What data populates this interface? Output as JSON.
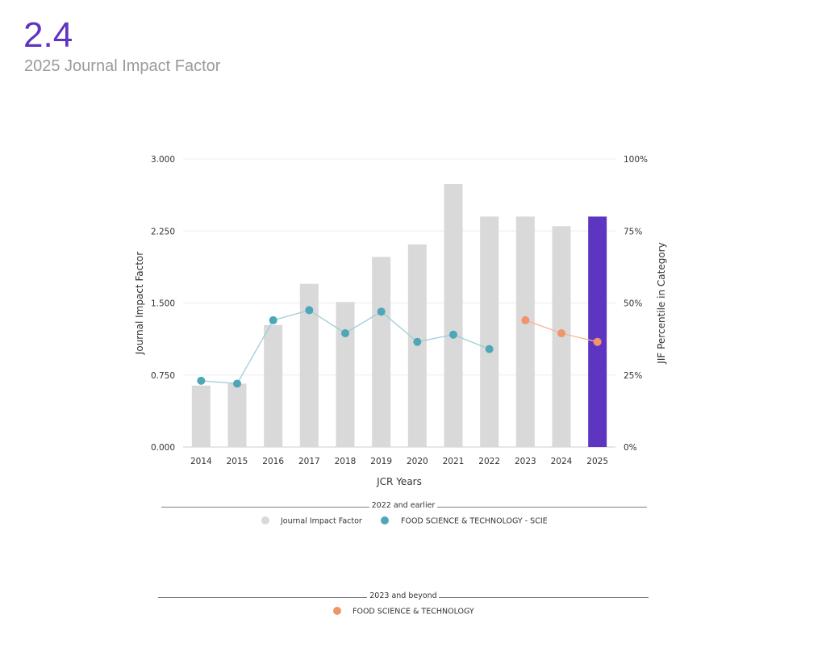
{
  "header": {
    "value": "2.4",
    "subtitle": "2025 Journal Impact Factor"
  },
  "chart_data": {
    "type": "bar",
    "categories": [
      "2014",
      "2015",
      "2016",
      "2017",
      "2018",
      "2019",
      "2020",
      "2021",
      "2022",
      "2023",
      "2024",
      "2025"
    ],
    "xlabel": "JCR Years",
    "ylabel": "Journal Impact Factor",
    "y2label": "JIF Percentile in Category",
    "ylim": [
      0,
      3
    ],
    "y2lim": [
      0,
      100
    ],
    "y_ticks": [
      "0.000",
      "0.750",
      "1.500",
      "2.250",
      "3.000"
    ],
    "y2_ticks": [
      "0%",
      "25%",
      "50%",
      "75%",
      "100%"
    ],
    "grid": true,
    "series": [
      {
        "name": "Journal Impact Factor",
        "type": "bar",
        "values": [
          0.64,
          0.66,
          1.27,
          1.7,
          1.51,
          1.98,
          2.11,
          2.74,
          2.4,
          2.4,
          2.3,
          2.4
        ],
        "color": "#d9d9d9",
        "highlight_index": 11,
        "highlight_color": "#5e35c1"
      },
      {
        "name": "FOOD SCIENCE & TECHNOLOGY - SCIE",
        "type": "line",
        "axis": "y2",
        "x": [
          "2014",
          "2015",
          "2016",
          "2017",
          "2018",
          "2019",
          "2020",
          "2021",
          "2022"
        ],
        "values": [
          23,
          22,
          44,
          47.5,
          39.5,
          47,
          36.5,
          39,
          34
        ],
        "color": "#4ea6b8",
        "line_color": "#9fcdd6"
      },
      {
        "name": "FOOD SCIENCE & TECHNOLOGY",
        "type": "line",
        "axis": "y2",
        "x": [
          "2023",
          "2024",
          "2025"
        ],
        "values": [
          44,
          39.5,
          36.5
        ],
        "color": "#f0956a",
        "line_color": "#f4b595"
      }
    ],
    "legend": {
      "group1_label": "2022 and earlier",
      "group2_label": "2023 and beyond",
      "placement": "bottom"
    }
  },
  "colors": {
    "accent": "#5e35c1",
    "bar": "#d9d9d9",
    "scie": "#4ea6b8",
    "recent": "#f0956a"
  }
}
